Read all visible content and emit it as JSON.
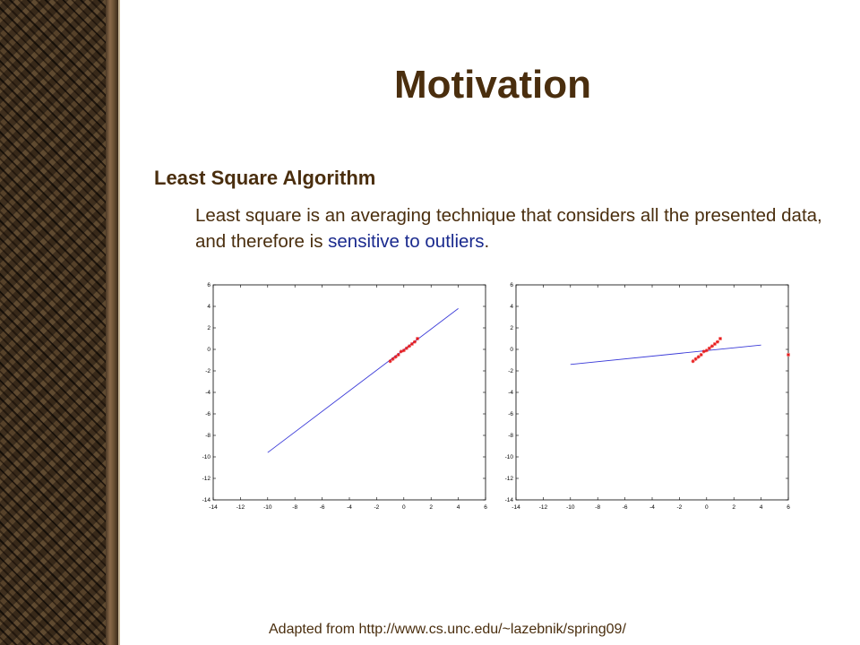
{
  "slide": {
    "title": "Motivation",
    "subtitle": "Least Square Algorithm",
    "body_part1": "Least square is an averaging technique that considers all the presented data, and therefore is ",
    "body_highlight": "sensitive to outliers",
    "body_part2": ".",
    "footer": "Adapted from http://www.cs.unc.edu/~lazebnik/spring09/"
  },
  "colors": {
    "title": "#4a2e0e",
    "highlight": "#1a2a8e",
    "fit_line": "#3a3ad8",
    "points": "#e81818"
  },
  "chart_data": [
    {
      "type": "scatter",
      "xlim": [
        -14,
        6
      ],
      "ylim": [
        -14,
        6
      ],
      "x_ticks": [
        -14,
        -12,
        -10,
        -8,
        -6,
        -4,
        -2,
        0,
        2,
        4,
        6
      ],
      "y_ticks": [
        -14,
        -12,
        -10,
        -8,
        -6,
        -4,
        -2,
        0,
        2,
        4,
        6
      ],
      "points": [
        [
          -1.0,
          -1.1
        ],
        [
          -0.8,
          -0.9
        ],
        [
          -0.6,
          -0.7
        ],
        [
          -0.4,
          -0.5
        ],
        [
          -0.2,
          -0.2
        ],
        [
          0.0,
          -0.1
        ],
        [
          0.2,
          0.1
        ],
        [
          0.4,
          0.3
        ],
        [
          0.6,
          0.5
        ],
        [
          0.8,
          0.7
        ],
        [
          1.0,
          1.0
        ]
      ],
      "fit_line": [
        [
          -10,
          -9.6
        ],
        [
          4,
          3.8
        ]
      ]
    },
    {
      "type": "scatter",
      "xlim": [
        -14,
        6
      ],
      "ylim": [
        -14,
        6
      ],
      "x_ticks": [
        -14,
        -12,
        -10,
        -8,
        -6,
        -4,
        -2,
        0,
        2,
        4,
        6
      ],
      "y_ticks": [
        -14,
        -12,
        -10,
        -8,
        -6,
        -4,
        -2,
        0,
        2,
        4,
        6
      ],
      "points": [
        [
          -1.0,
          -1.1
        ],
        [
          -0.8,
          -0.9
        ],
        [
          -0.6,
          -0.7
        ],
        [
          -0.4,
          -0.5
        ],
        [
          -0.2,
          -0.2
        ],
        [
          0.0,
          -0.1
        ],
        [
          0.2,
          0.1
        ],
        [
          0.4,
          0.3
        ],
        [
          0.6,
          0.5
        ],
        [
          0.8,
          0.7
        ],
        [
          1.0,
          1.0
        ],
        [
          6.0,
          -0.5
        ]
      ],
      "fit_line": [
        [
          -10,
          -1.4
        ],
        [
          4,
          0.4
        ]
      ]
    }
  ]
}
